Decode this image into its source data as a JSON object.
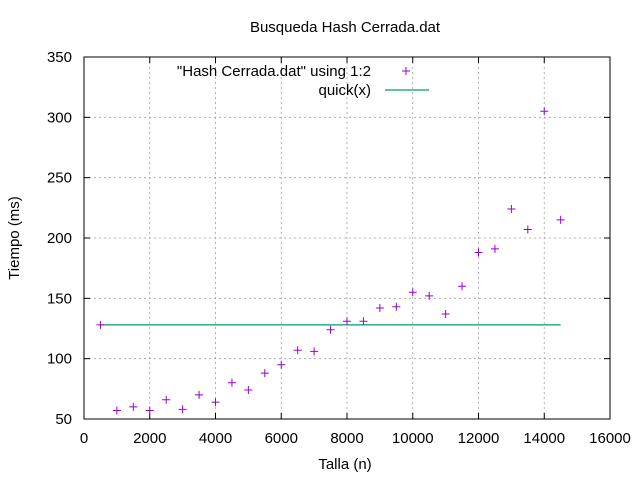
{
  "chart_data": {
    "type": "scatter",
    "title": "Busqueda Hash Cerrada.dat",
    "xlabel": "Talla (n)",
    "ylabel": "Tiempo (ms)",
    "xlim": [
      0,
      16000
    ],
    "ylim": [
      50,
      350
    ],
    "xticks": [
      0,
      2000,
      4000,
      6000,
      8000,
      10000,
      12000,
      14000,
      16000
    ],
    "yticks": [
      50,
      100,
      150,
      200,
      250,
      300,
      350
    ],
    "grid": true,
    "legend_position": "top-center",
    "series": [
      {
        "name": "\"Hash Cerrada.dat\" using 1:2",
        "style": "points",
        "marker": "plus",
        "color": "#9400d3",
        "x": [
          500,
          1000,
          1500,
          2000,
          2500,
          3000,
          3500,
          4000,
          4500,
          5000,
          5500,
          6000,
          6500,
          7000,
          7500,
          8000,
          8500,
          9000,
          9500,
          10000,
          10500,
          11000,
          11500,
          12000,
          12500,
          13000,
          13500,
          14000,
          14500
        ],
        "y": [
          128,
          57,
          60,
          57,
          66,
          58,
          70,
          64,
          80,
          74,
          88,
          95,
          107,
          106,
          124,
          131,
          131,
          142,
          143,
          155,
          152,
          137,
          160,
          188,
          191,
          224,
          207,
          305,
          215
        ]
      },
      {
        "name": "quick(x)",
        "style": "line",
        "color": "#009e73",
        "x": [
          500,
          14500
        ],
        "y": [
          128,
          128
        ]
      }
    ]
  }
}
